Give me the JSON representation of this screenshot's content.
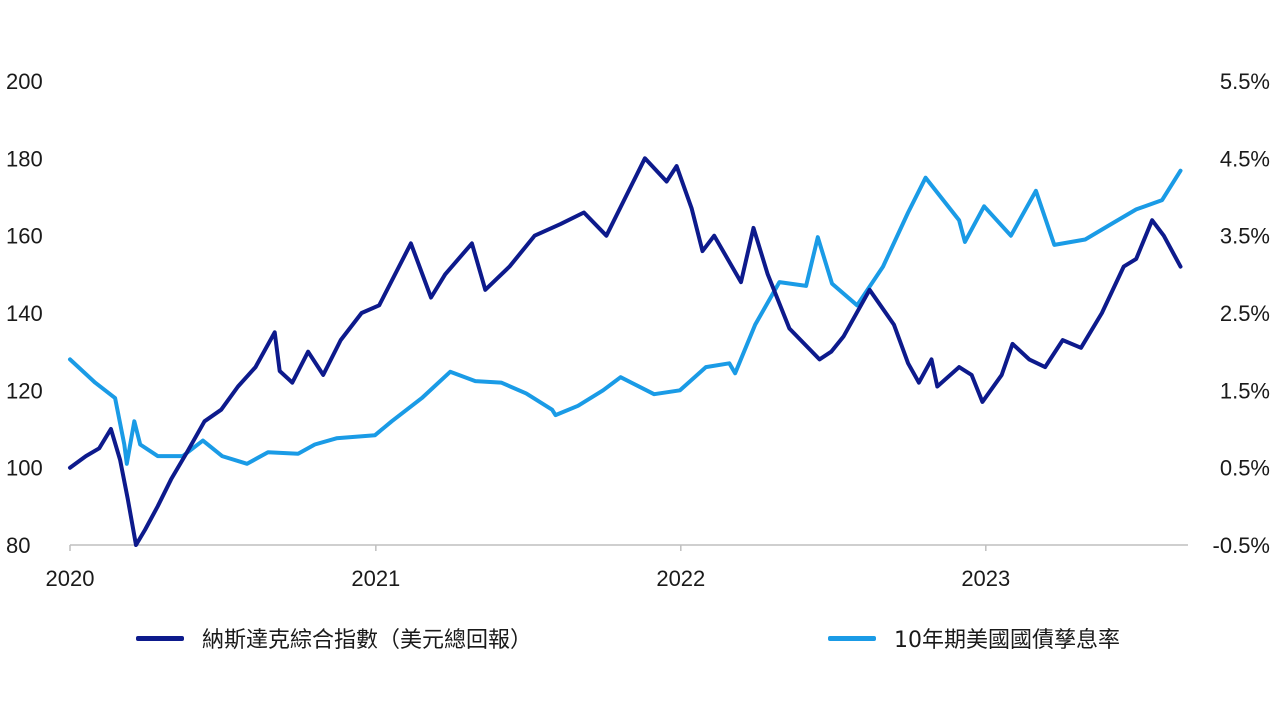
{
  "chart_data": {
    "type": "line",
    "title": "",
    "xlabel": "",
    "x_tick_labels": [
      "2020",
      "2021",
      "2022",
      "2023"
    ],
    "xlim": [
      "2020-01-01",
      "2023-08-31"
    ],
    "y_left": {
      "ylim": [
        80,
        200
      ],
      "ticks": [
        80,
        100,
        120,
        140,
        160,
        180,
        200
      ],
      "tick_labels": [
        "80",
        "100",
        "120",
        "140",
        "160",
        "180",
        "200"
      ]
    },
    "y_right": {
      "ylim": [
        -0.5,
        5.5
      ],
      "unit": "%",
      "ticks": [
        -0.5,
        0.5,
        1.5,
        2.5,
        3.5,
        4.5,
        5.5
      ],
      "tick_labels": [
        "-0.5%",
        "0.5%",
        "1.5%",
        "2.5%",
        "3.5%",
        "4.5%",
        "5.5%"
      ]
    },
    "grid": false,
    "legend_position": "bottom",
    "series": [
      {
        "name": "納斯達克綜合指數（美元總回報）",
        "axis": "left",
        "color": "#0d1a8c",
        "points": [
          [
            "2020-01-01",
            100
          ],
          [
            "2020-01-20",
            103
          ],
          [
            "2020-02-05",
            105
          ],
          [
            "2020-02-19",
            110
          ],
          [
            "2020-03-01",
            102
          ],
          [
            "2020-03-10",
            92
          ],
          [
            "2020-03-20",
            80
          ],
          [
            "2020-03-31",
            84
          ],
          [
            "2020-04-15",
            90
          ],
          [
            "2020-05-01",
            97
          ],
          [
            "2020-05-20",
            104
          ],
          [
            "2020-06-10",
            112
          ],
          [
            "2020-06-30",
            115
          ],
          [
            "2020-07-20",
            121
          ],
          [
            "2020-08-10",
            126
          ],
          [
            "2020-09-02",
            135
          ],
          [
            "2020-09-08",
            125
          ],
          [
            "2020-09-23",
            122
          ],
          [
            "2020-10-12",
            130
          ],
          [
            "2020-10-30",
            124
          ],
          [
            "2020-11-20",
            133
          ],
          [
            "2020-12-15",
            140
          ],
          [
            "2021-01-05",
            142
          ],
          [
            "2021-02-12",
            158
          ],
          [
            "2021-03-08",
            144
          ],
          [
            "2021-03-25",
            150
          ],
          [
            "2021-04-26",
            158
          ],
          [
            "2021-05-12",
            146
          ],
          [
            "2021-06-10",
            152
          ],
          [
            "2021-07-10",
            160
          ],
          [
            "2021-08-10",
            163
          ],
          [
            "2021-09-07",
            166
          ],
          [
            "2021-10-04",
            160
          ],
          [
            "2021-11-19",
            180
          ],
          [
            "2021-12-15",
            174
          ],
          [
            "2021-12-27",
            178
          ],
          [
            "2022-01-14",
            167
          ],
          [
            "2022-01-27",
            156
          ],
          [
            "2022-02-10",
            160
          ],
          [
            "2022-03-14",
            148
          ],
          [
            "2022-03-29",
            162
          ],
          [
            "2022-04-15",
            150
          ],
          [
            "2022-05-11",
            136
          ],
          [
            "2022-06-16",
            128
          ],
          [
            "2022-06-30",
            130
          ],
          [
            "2022-07-15",
            134
          ],
          [
            "2022-08-15",
            146
          ],
          [
            "2022-09-13",
            137
          ],
          [
            "2022-09-30",
            127
          ],
          [
            "2022-10-13",
            122
          ],
          [
            "2022-10-28",
            128
          ],
          [
            "2022-11-04",
            121
          ],
          [
            "2022-11-30",
            126
          ],
          [
            "2022-12-15",
            124
          ],
          [
            "2022-12-28",
            117
          ],
          [
            "2023-01-20",
            124
          ],
          [
            "2023-02-02",
            132
          ],
          [
            "2023-02-22",
            128
          ],
          [
            "2023-03-13",
            126
          ],
          [
            "2023-04-03",
            133
          ],
          [
            "2023-04-25",
            131
          ],
          [
            "2023-05-20",
            140
          ],
          [
            "2023-06-15",
            152
          ],
          [
            "2023-06-30",
            154
          ],
          [
            "2023-07-19",
            164
          ],
          [
            "2023-08-02",
            160
          ],
          [
            "2023-08-22",
            152
          ]
        ]
      },
      {
        "name": "10年期美國國債孳息率",
        "axis": "right",
        "color": "#1a9be6",
        "points": [
          [
            "2020-01-01",
            1.9
          ],
          [
            "2020-01-31",
            1.6
          ],
          [
            "2020-02-24",
            1.4
          ],
          [
            "2020-03-06",
            0.8
          ],
          [
            "2020-03-09",
            0.55
          ],
          [
            "2020-03-18",
            1.1
          ],
          [
            "2020-03-25",
            0.8
          ],
          [
            "2020-04-15",
            0.65
          ],
          [
            "2020-05-15",
            0.65
          ],
          [
            "2020-06-08",
            0.85
          ],
          [
            "2020-07-01",
            0.65
          ],
          [
            "2020-07-31",
            0.55
          ],
          [
            "2020-08-25",
            0.7
          ],
          [
            "2020-09-30",
            0.68
          ],
          [
            "2020-10-20",
            0.8
          ],
          [
            "2020-11-15",
            0.88
          ],
          [
            "2020-12-31",
            0.92
          ],
          [
            "2021-01-20",
            1.1
          ],
          [
            "2021-02-25",
            1.4
          ],
          [
            "2021-03-31",
            1.74
          ],
          [
            "2021-04-30",
            1.62
          ],
          [
            "2021-05-31",
            1.6
          ],
          [
            "2021-06-30",
            1.46
          ],
          [
            "2021-07-31",
            1.25
          ],
          [
            "2021-08-04",
            1.18
          ],
          [
            "2021-08-31",
            1.3
          ],
          [
            "2021-09-30",
            1.5
          ],
          [
            "2021-10-21",
            1.67
          ],
          [
            "2021-11-30",
            1.45
          ],
          [
            "2021-12-31",
            1.5
          ],
          [
            "2022-01-31",
            1.8
          ],
          [
            "2022-02-28",
            1.85
          ],
          [
            "2022-03-07",
            1.72
          ],
          [
            "2022-03-31",
            2.35
          ],
          [
            "2022-04-29",
            2.9
          ],
          [
            "2022-05-31",
            2.85
          ],
          [
            "2022-06-14",
            3.48
          ],
          [
            "2022-07-01",
            2.88
          ],
          [
            "2022-07-31",
            2.6
          ],
          [
            "2022-08-31",
            3.1
          ],
          [
            "2022-09-30",
            3.8
          ],
          [
            "2022-10-21",
            4.25
          ],
          [
            "2022-11-30",
            3.7
          ],
          [
            "2022-12-07",
            3.42
          ],
          [
            "2022-12-30",
            3.88
          ],
          [
            "2023-01-31",
            3.5
          ],
          [
            "2023-03-02",
            4.08
          ],
          [
            "2023-03-24",
            3.38
          ],
          [
            "2023-04-30",
            3.45
          ],
          [
            "2023-05-31",
            3.65
          ],
          [
            "2023-06-30",
            3.84
          ],
          [
            "2023-07-31",
            3.96
          ],
          [
            "2023-08-22",
            4.34
          ]
        ]
      }
    ]
  }
}
